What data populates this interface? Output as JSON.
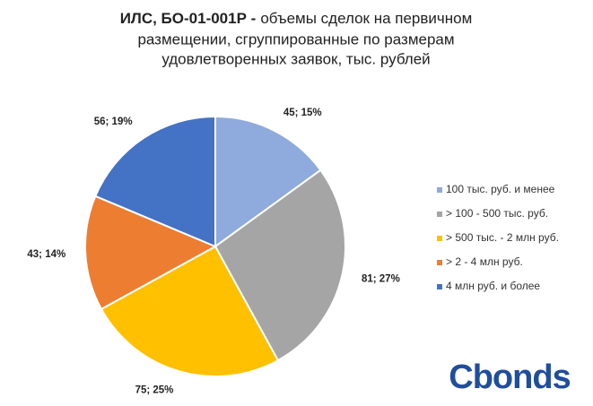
{
  "chart_data": {
    "type": "pie",
    "title": {
      "bold": "ИЛС, БО-01-001Р -",
      "lines": [
        "объемы сделок на первичном",
        "размещении, сгруппированные по размерам",
        "удовлетворенных заявок, тыс. рублей"
      ]
    },
    "categories": [
      "100 тыс. руб. и менее",
      "> 100 - 500 тыс. руб.",
      "> 500 тыс. - 2 млн руб.",
      "> 2 - 4 млн руб.",
      "4 млн руб. и более"
    ],
    "values": [
      45,
      81,
      75,
      43,
      56
    ],
    "value_labels": [
      "45; 15%",
      "81; 27%",
      "75; 25%",
      "43; 14%",
      "56; 19%"
    ],
    "colors": [
      "#8faadc",
      "#a5a5a5",
      "#ffc000",
      "#ed7d31",
      "#4472c4"
    ],
    "legend": "right"
  },
  "logo": "Cbonds"
}
